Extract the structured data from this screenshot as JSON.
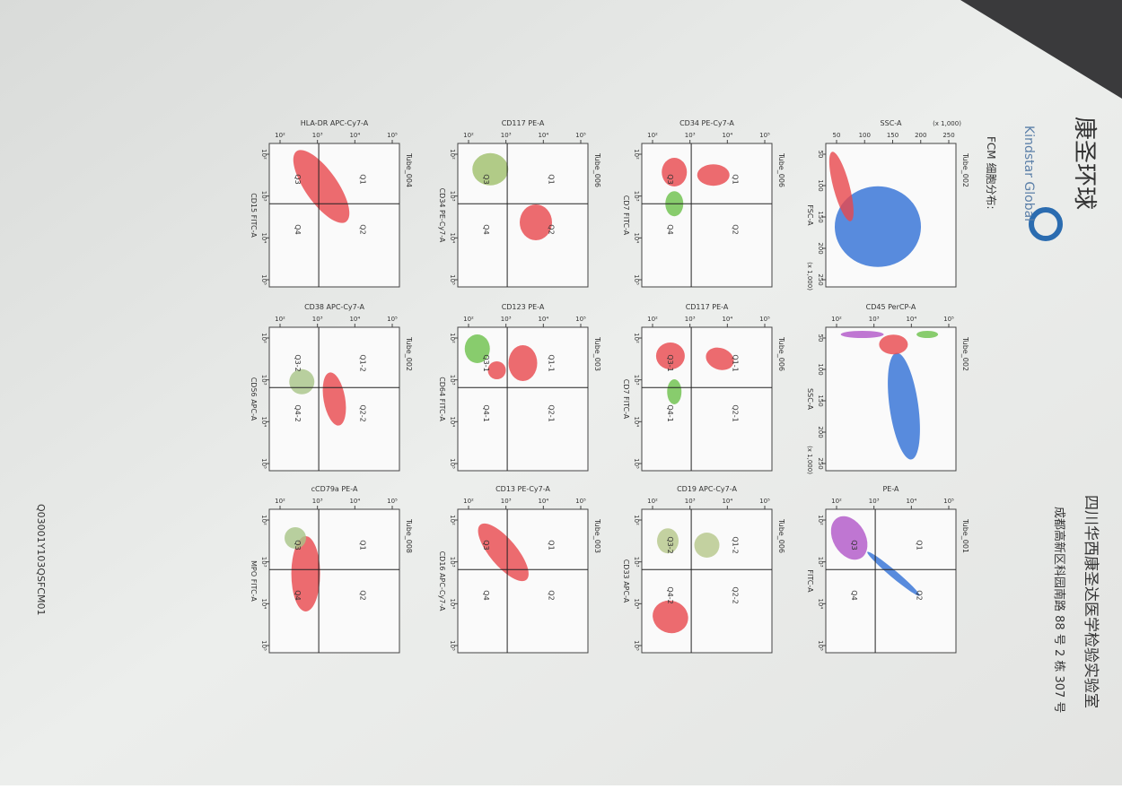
{
  "header": {
    "lab_name": "四川华西康圣达医学检验实验室",
    "address": "成都高新区科园南路 88 号 2 栋 307 号",
    "logo_cn": "康圣环球",
    "logo_en": "Kindstar Global"
  },
  "section_title": "FCM 细胞分布:",
  "plots": [
    {
      "tube": "Tube_002",
      "x_label": "SSC-A",
      "y_label": "FSC-A",
      "x_ticks": [
        "50",
        "100",
        "150",
        "200",
        "250"
      ],
      "y_ticks": [
        "50",
        "100",
        "150",
        "200",
        "250"
      ],
      "x_scale_note": "(x 1,000)",
      "y_scale_note": "(x 1,000)",
      "quadrants": []
    },
    {
      "tube": "Tube_002",
      "x_label": "CD45 PerCP-A",
      "y_label": "SSC-A",
      "x_ticks": [
        "10²",
        "10³",
        "10⁴",
        "10⁵"
      ],
      "y_ticks": [
        "50",
        "100",
        "150",
        "200",
        "250"
      ],
      "y_scale_note": "(x 1,000)",
      "quadrants": []
    },
    {
      "tube": "Tube_001",
      "x_label": "PE-A",
      "y_label": "FITC-A",
      "x_ticks": [
        "10²",
        "10³",
        "10⁴",
        "10⁵"
      ],
      "y_ticks": [
        "10²",
        "10³",
        "10⁴",
        "10⁵"
      ],
      "quadrants": [
        "Q1",
        "Q2",
        "Q3",
        "Q4"
      ]
    },
    {
      "tube": "Tube_006",
      "x_label": "CD34 PE-Cy7-A",
      "y_label": "CD7 FITC-A",
      "x_ticks": [
        "10²",
        "10³",
        "10⁴",
        "10⁵"
      ],
      "y_ticks": [
        "10²",
        "10³",
        "10⁴",
        "10⁵"
      ],
      "quadrants": [
        "Q1",
        "Q2",
        "Q3",
        "Q4"
      ]
    },
    {
      "tube": "Tube_006",
      "x_label": "CD117 PE-A",
      "y_label": "CD7 FITC-A",
      "x_ticks": [
        "10²",
        "10³",
        "10⁴",
        "10⁵"
      ],
      "y_ticks": [
        "10²",
        "10³",
        "10⁴",
        "10⁵"
      ],
      "quadrants": [
        "Q1-1",
        "Q2-1",
        "Q3-1",
        "Q4-1"
      ]
    },
    {
      "tube": "Tube_006",
      "x_label": "CD19 APC-Cy7-A",
      "y_label": "CD33 APC-A",
      "x_ticks": [
        "10²",
        "10³",
        "10⁴",
        "10⁵"
      ],
      "y_ticks": [
        "10²",
        "10³",
        "10⁴",
        "10⁵"
      ],
      "quadrants": [
        "Q1-2",
        "Q2-2",
        "Q3-2",
        "Q4-2"
      ]
    },
    {
      "tube": "Tube_006",
      "x_label": "CD117 PE-A",
      "y_label": "CD34 PE-Cy7-A",
      "x_ticks": [
        "10²",
        "10³",
        "10⁴",
        "10⁵"
      ],
      "y_ticks": [
        "10²",
        "10³",
        "10⁴",
        "10⁵"
      ],
      "quadrants": [
        "Q1",
        "Q2",
        "Q3",
        "Q4"
      ]
    },
    {
      "tube": "Tube_003",
      "x_label": "CD123 PE-A",
      "y_label": "CD64 FITC-A",
      "x_ticks": [
        "10²",
        "10³",
        "10⁴",
        "10⁵"
      ],
      "y_ticks": [
        "10²",
        "10³",
        "10⁴",
        "10⁵"
      ],
      "quadrants": [
        "Q1-1",
        "Q2-1",
        "Q3-1",
        "Q4-1"
      ]
    },
    {
      "tube": "Tube_003",
      "x_label": "CD13 PE-Cy7-A",
      "y_label": "CD16 APC-Cy7-A",
      "x_ticks": [
        "10²",
        "10³",
        "10⁴",
        "10⁵"
      ],
      "y_ticks": [
        "10²",
        "10³",
        "10⁴",
        "10⁵"
      ],
      "quadrants": [
        "Q1",
        "Q2",
        "Q3",
        "Q4"
      ]
    },
    {
      "tube": "Tube_004",
      "x_label": "HLA-DR APC-Cy7-A",
      "y_label": "CD15 FITC-A",
      "x_ticks": [
        "10²",
        "10³",
        "10⁴",
        "10⁵"
      ],
      "y_ticks": [
        "10²",
        "10³",
        "10⁴",
        "10⁵"
      ],
      "quadrants": [
        "Q1",
        "Q2",
        "Q3",
        "Q4"
      ]
    },
    {
      "tube": "Tube_002",
      "x_label": "CD38 APC-Cy7-A",
      "y_label": "CD56 APC-A",
      "x_ticks": [
        "10²",
        "10³",
        "10⁴",
        "10⁵"
      ],
      "y_ticks": [
        "10²",
        "10³",
        "10⁴",
        "10⁵"
      ],
      "quadrants": [
        "Q1-2",
        "Q2-2",
        "Q3-2",
        "Q4-2"
      ]
    },
    {
      "tube": "Tube_008",
      "x_label": "cCD79a PE-A",
      "y_label": "MPO FITC-A",
      "x_ticks": [
        "10²",
        "10³",
        "10⁴",
        "10⁵"
      ],
      "y_ticks": [
        "10²",
        "10³",
        "10⁴",
        "10⁵"
      ],
      "quadrants": [
        "Q1",
        "Q2",
        "Q3",
        "Q4"
      ]
    }
  ],
  "footer_code": "Q03001Y103QSFCM01"
}
